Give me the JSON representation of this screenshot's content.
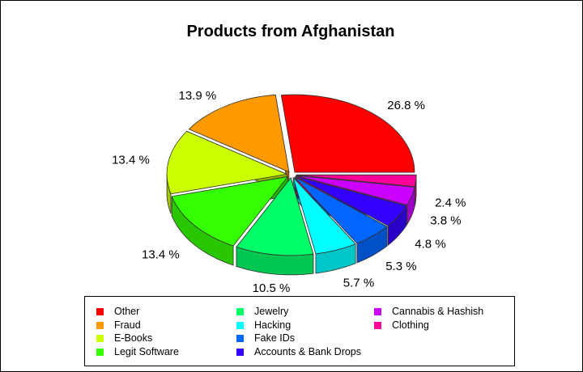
{
  "chart_data": {
    "type": "pie",
    "title": "Products from Afghanistan",
    "slices": [
      {
        "label": "Other",
        "value": 26.8,
        "display": "26.8 %",
        "color": "#ff0000"
      },
      {
        "label": "Clothing",
        "value": 2.4,
        "display": "2.4 %",
        "color": "#ff0099"
      },
      {
        "label": "Cannabis & Hashish",
        "value": 3.8,
        "display": "3.8 %",
        "color": "#cc00ff"
      },
      {
        "label": "Accounts & Bank Drops",
        "value": 4.8,
        "display": "4.8 %",
        "color": "#3300ff"
      },
      {
        "label": "Fake IDs",
        "value": 5.3,
        "display": "5.3 %",
        "color": "#0066ff"
      },
      {
        "label": "Hacking",
        "value": 5.7,
        "display": "5.7 %",
        "color": "#00ffff"
      },
      {
        "label": "Jewelry",
        "value": 10.5,
        "display": "10.5 %",
        "color": "#00ff66"
      },
      {
        "label": "Legit Software",
        "value": 13.4,
        "display": "13.4 %",
        "color": "#33ff00"
      },
      {
        "label": "E-Books",
        "value": 13.4,
        "display": "13.4 %",
        "color": "#ccff00"
      },
      {
        "label": "Fraud",
        "value": 13.9,
        "display": "13.9 %",
        "color": "#ff9900"
      }
    ],
    "legend": {
      "placement": "bottom",
      "columns": [
        [
          "Other",
          "Fraud",
          "E-Books",
          "Legit Software"
        ],
        [
          "Jewelry",
          "Hacking",
          "Fake IDs",
          "Accounts & Bank Drops"
        ],
        [
          "Cannabis & Hashish",
          "Clothing"
        ]
      ]
    },
    "style": "3d-exploded"
  }
}
